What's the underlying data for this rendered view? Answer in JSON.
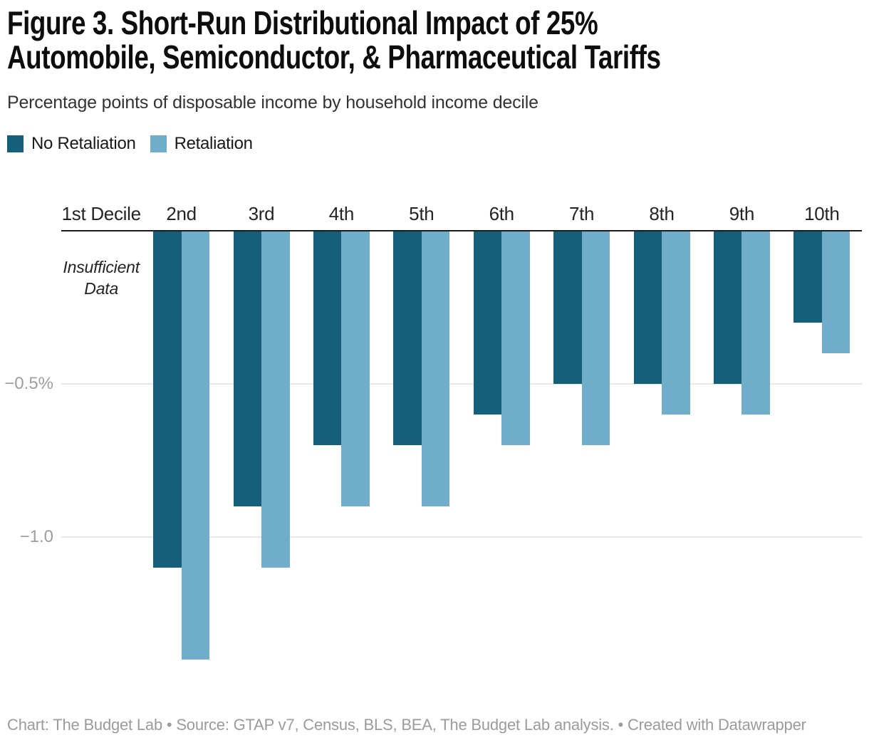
{
  "header": {
    "title_lines": [
      "Figure 3. Short-Run Distributional Impact of 25%",
      "Automobile, Semiconductor, & Pharmaceutical Tariffs"
    ]
  },
  "legend": {
    "items": [
      {
        "label": "No Retaliation",
        "color": "#155f7b"
      },
      {
        "label": "Retaliation",
        "color": "#6fadca"
      }
    ]
  },
  "chart_data": {
    "type": "bar",
    "title": "Figure 3. Short-Run Distributional Impact of 25% Automobile, Semiconductor, & Pharmaceutical Tariffs",
    "subtitle": "Percentage points of disposable income by household income decile",
    "xlabel": "",
    "ylabel": "Percentage points of disposable income",
    "categories": [
      "1st Decile",
      "2nd",
      "3rd",
      "4th",
      "5th",
      "6th",
      "7th",
      "8th",
      "9th",
      "10th"
    ],
    "series": [
      {
        "name": "No Retaliation",
        "color": "#155f7b",
        "values": [
          null,
          -1.1,
          -0.9,
          -0.7,
          -0.7,
          -0.6,
          -0.5,
          -0.5,
          -0.5,
          -0.3
        ]
      },
      {
        "name": "Retaliation",
        "color": "#6fadca",
        "values": [
          null,
          -1.4,
          -1.1,
          -0.9,
          -0.9,
          -0.7,
          -0.7,
          -0.6,
          -0.6,
          -0.4
        ]
      }
    ],
    "annotations": [
      {
        "text": "Insufficient Data",
        "category_index": 0
      }
    ],
    "y_ticks": [
      {
        "value": -0.5,
        "label": "−0.5%"
      },
      {
        "value": -1.0,
        "label": "−1.0"
      }
    ],
    "ylim": [
      -1.5,
      0
    ],
    "baseline_value": 0,
    "grid": true,
    "legend_position": "top-left",
    "bar_direction": "downward"
  },
  "footer": {
    "text": "Chart: The Budget Lab • Source: GTAP v7, Census, BLS, BEA, The Budget Lab analysis. • Created with Datawrapper"
  },
  "colors": {
    "baseline": "#1a1a1a",
    "gridline": "#e8e8e8",
    "tick_text": "#9e9e9e",
    "title_text": "#0d0d0d",
    "footer_text": "#9b9b9b"
  }
}
